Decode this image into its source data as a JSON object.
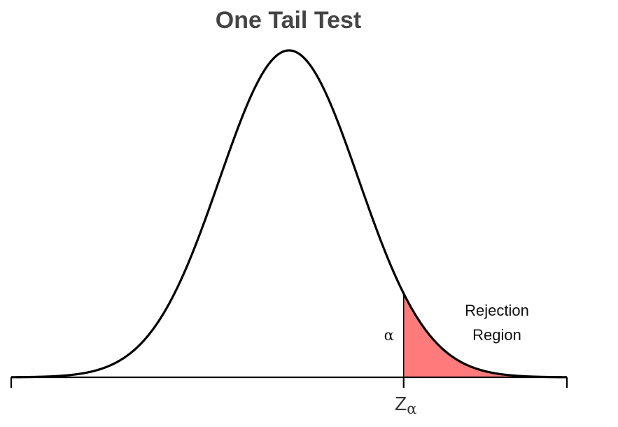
{
  "chart_data": {
    "type": "area",
    "title": "One Tail Test",
    "distribution": "normal",
    "mean": 0,
    "sd": 1,
    "xlim": [
      -4,
      4
    ],
    "critical_value": 1.65,
    "tail": "right",
    "critical_label": "Z",
    "critical_label_subscript": "α",
    "alpha_label": "α",
    "region_label": [
      "Rejection",
      "Region"
    ],
    "colors": {
      "curve": "#000000",
      "rejection_fill": "#ff7b7b",
      "axis": "#000000",
      "title": "#444444"
    },
    "grid": false,
    "legend": "none"
  }
}
